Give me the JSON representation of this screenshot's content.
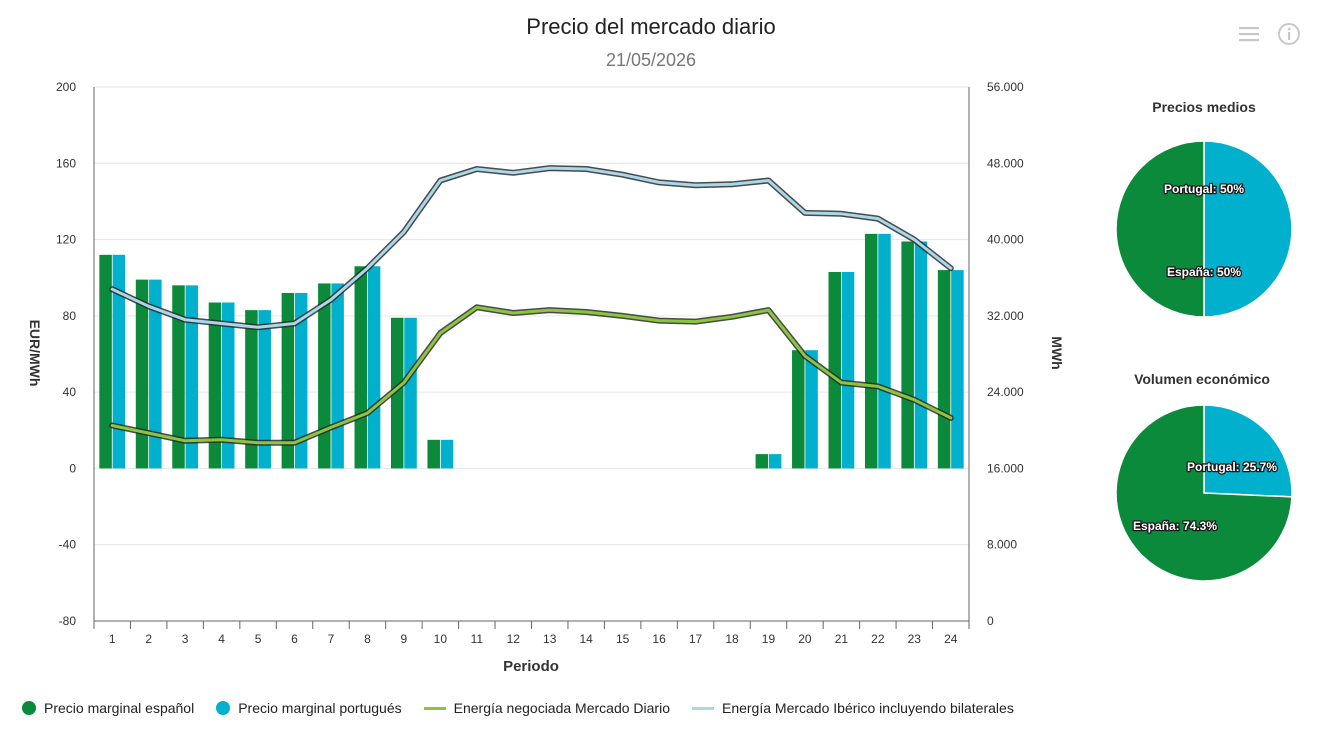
{
  "header": {
    "title": "Precio del mercado diario",
    "subtitle": "21/05/2026"
  },
  "toolbar": {
    "menu_icon": "hamburger-menu-icon",
    "info_icon": "info-icon"
  },
  "chart_data": [
    {
      "type": "bar",
      "xlabel": "Periodo",
      "ylabel": "EUR/MWh",
      "y2label": "MWh",
      "ylim": [
        -80,
        200
      ],
      "y2lim": [
        0,
        56000
      ],
      "yticks": [
        "200",
        "160",
        "120",
        "80",
        "40",
        "0",
        "-40",
        "-80"
      ],
      "y2ticks": [
        "56.000",
        "48.000",
        "40.000",
        "32.000",
        "24.000",
        "16.000",
        "8.000",
        "0"
      ],
      "categories": [
        "1",
        "2",
        "3",
        "4",
        "5",
        "6",
        "7",
        "8",
        "9",
        "10",
        "11",
        "12",
        "13",
        "14",
        "15",
        "16",
        "17",
        "18",
        "19",
        "20",
        "21",
        "22",
        "23",
        "24"
      ],
      "series": [
        {
          "name": "Precio marginal español",
          "kind": "bar",
          "axis": "left",
          "color": "#0a8a3a",
          "values": [
            112,
            99,
            96,
            87,
            83,
            92,
            97,
            106,
            79,
            15,
            0,
            0,
            0,
            0,
            0,
            0,
            0,
            0,
            7.5,
            62,
            103,
            123,
            119,
            104
          ]
        },
        {
          "name": "Precio marginal portugués",
          "kind": "bar",
          "axis": "left",
          "color": "#00b0cc",
          "values": [
            112,
            99,
            96,
            87,
            83,
            92,
            97,
            106,
            79,
            15,
            0,
            0,
            0,
            0,
            0,
            0,
            0,
            0,
            7.5,
            62,
            103,
            123,
            119,
            104
          ]
        },
        {
          "name": "Energía negociada Mercado Diario",
          "kind": "line",
          "axis": "right",
          "color": "#8cc63f",
          "values": [
            20500,
            19700,
            18900,
            19000,
            18700,
            18700,
            20300,
            21800,
            25000,
            30200,
            32900,
            32300,
            32600,
            32400,
            32000,
            31500,
            31400,
            31900,
            32600,
            27800,
            25000,
            24600,
            23200,
            21300
          ]
        },
        {
          "name": "Energía Mercado Ibérico incluyendo bilaterales",
          "kind": "line",
          "axis": "right",
          "color": "#a8d8ea",
          "values": [
            34800,
            33000,
            31600,
            31200,
            30800,
            31200,
            33700,
            37000,
            40800,
            46200,
            47400,
            47000,
            47500,
            47400,
            46800,
            46000,
            45700,
            45800,
            46200,
            42800,
            42700,
            42200,
            40000,
            37000
          ]
        }
      ],
      "legend_position": "bottom"
    },
    {
      "type": "pie",
      "title": "Precios medios",
      "slices": [
        {
          "label": "Portugal: 50%",
          "value": 50,
          "color": "#00b0cc"
        },
        {
          "label": "España: 50%",
          "value": 50,
          "color": "#0a8a3a"
        }
      ]
    },
    {
      "type": "pie",
      "title": "Volumen económico",
      "slices": [
        {
          "label": "Portugal: 25.7%",
          "value": 25.7,
          "color": "#00b0cc"
        },
        {
          "label": "España: 74.3%",
          "value": 74.3,
          "color": "#0a8a3a"
        }
      ]
    }
  ]
}
